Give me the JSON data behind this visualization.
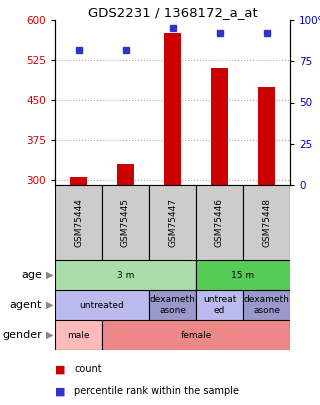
{
  "title": "GDS2231 / 1368172_a_at",
  "samples": [
    "GSM75444",
    "GSM75445",
    "GSM75447",
    "GSM75446",
    "GSM75448"
  ],
  "counts": [
    305,
    330,
    575,
    510,
    475
  ],
  "percentile_ranks": [
    82,
    82,
    95,
    92,
    92
  ],
  "ylim_left": [
    290,
    600
  ],
  "ylim_right": [
    0,
    100
  ],
  "yticks_left": [
    300,
    375,
    450,
    525,
    600
  ],
  "yticks_right": [
    0,
    25,
    50,
    75,
    100
  ],
  "ytick_labels_right": [
    "0",
    "25",
    "50",
    "75",
    "100%"
  ],
  "bar_color": "#cc0000",
  "dot_color": "#3333cc",
  "age_groups": [
    {
      "label": "3 m",
      "samples": [
        0,
        1,
        2
      ],
      "color": "#aaddaa"
    },
    {
      "label": "15 m",
      "samples": [
        3,
        4
      ],
      "color": "#55cc55"
    }
  ],
  "agent_groups": [
    {
      "label": "untreated",
      "samples": [
        0,
        1
      ],
      "color": "#bbbbee"
    },
    {
      "label": "dexameth\nasone",
      "samples": [
        2
      ],
      "color": "#9999cc"
    },
    {
      "label": "untreat\ned",
      "samples": [
        3
      ],
      "color": "#bbbbee"
    },
    {
      "label": "dexameth\nasone",
      "samples": [
        4
      ],
      "color": "#9999cc"
    }
  ],
  "gender_groups": [
    {
      "label": "male",
      "samples": [
        0
      ],
      "color": "#ffbbbb"
    },
    {
      "label": "female",
      "samples": [
        1,
        2,
        3,
        4
      ],
      "color": "#ee8888"
    }
  ],
  "row_labels": [
    "age",
    "agent",
    "gender"
  ],
  "sample_box_color": "#cccccc",
  "grid_color": "#aaaaaa",
  "left_axis_color": "#cc0000",
  "right_axis_color": "#0000cc",
  "bg_color": "#ffffff"
}
